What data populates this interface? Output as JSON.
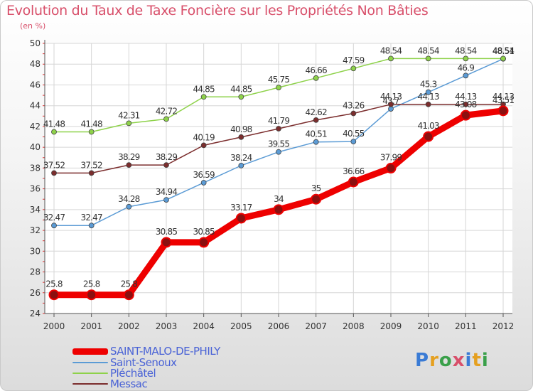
{
  "chart_data": {
    "type": "line",
    "title": "Evolution du Taux de Taxe Foncière sur les Propriétés Non Bâties",
    "subtitle": "(en %)",
    "x": [
      "2000",
      "2001",
      "2002",
      "2003",
      "2004",
      "2005",
      "2006",
      "2007",
      "2008",
      "2009",
      "2010",
      "2011",
      "2012"
    ],
    "ylim": [
      24,
      50
    ],
    "yticks": [
      24,
      26,
      28,
      30,
      32,
      34,
      36,
      38,
      40,
      42,
      44,
      46,
      48,
      50
    ],
    "grid": true,
    "legend_position": "bottom-left",
    "series": [
      {
        "name": "SAINT-MALO-DE-PHILY",
        "color": "#ee0000",
        "values": [
          25.8,
          25.8,
          25.8,
          30.85,
          30.85,
          33.17,
          34,
          35,
          36.66,
          37.99,
          41.03,
          43.08,
          43.51
        ],
        "labels": [
          "25.8",
          "25.8",
          "25.8",
          "30.85",
          "30.85",
          "33.17",
          "34",
          "35",
          "36.66",
          "37.99",
          "41.03",
          "43.08",
          "43.51"
        ]
      },
      {
        "name": "Saint-Senoux",
        "color": "#5b9bd5",
        "values": [
          32.47,
          32.47,
          34.28,
          34.94,
          36.59,
          38.24,
          39.55,
          40.51,
          40.55,
          43.7,
          45.3,
          46.9,
          48.51
        ],
        "labels": [
          "32.47",
          "32.47",
          "34.28",
          "34.94",
          "36.59",
          "38.24",
          "39.55",
          "40.51",
          "40.55",
          "43.7",
          "45.3",
          "46.9",
          "48.51"
        ]
      },
      {
        "name": "Pléchâtel",
        "color": "#8ed24a",
        "values": [
          41.48,
          41.48,
          42.31,
          42.72,
          44.85,
          44.85,
          45.75,
          46.66,
          47.59,
          48.54,
          48.54,
          48.54,
          48.54
        ],
        "labels": [
          "41.48",
          "41.48",
          "42.31",
          "42.72",
          "44.85",
          "44.85",
          "45.75",
          "46.66",
          "47.59",
          "48.54",
          "48.54",
          "48.54",
          "48.54"
        ]
      },
      {
        "name": "Messac",
        "color": "#7b2d2d",
        "values": [
          37.52,
          37.52,
          38.29,
          38.29,
          40.19,
          40.98,
          41.79,
          42.62,
          43.26,
          44.13,
          44.13,
          44.13,
          44.13
        ],
        "labels": [
          "37.52",
          "37.52",
          "38.29",
          "38.29",
          "40.19",
          "40.98",
          "41.79",
          "42.62",
          "43.26",
          "44.13",
          "44.13",
          "44.13",
          "44.13"
        ]
      }
    ]
  },
  "legend": {
    "items": [
      {
        "label": "SAINT-MALO-DE-PHILY",
        "color": "#ee0000"
      },
      {
        "label": "Saint-Senoux",
        "color": "#5b9bd5"
      },
      {
        "label": "Pléchâtel",
        "color": "#8ed24a"
      },
      {
        "label": "Messac",
        "color": "#7b2d2d"
      }
    ]
  },
  "logo": {
    "text": "Proxiti"
  }
}
